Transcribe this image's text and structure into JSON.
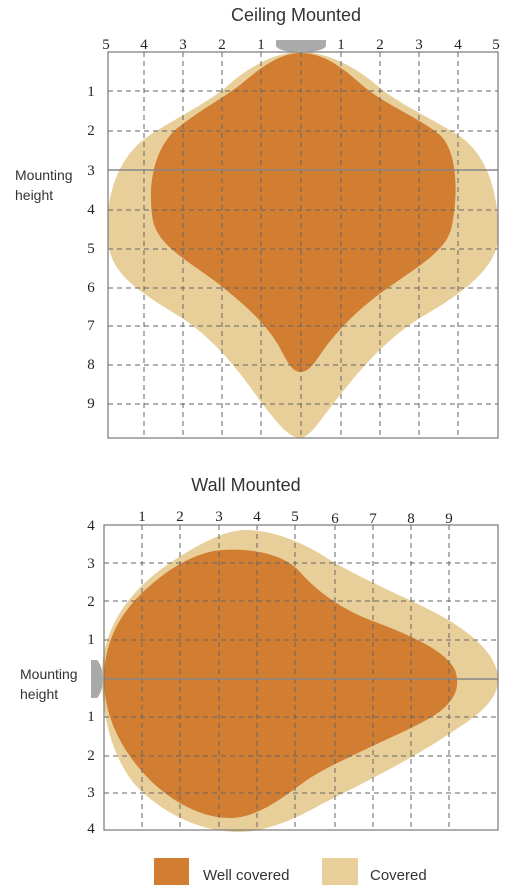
{
  "ceiling": {
    "title": "Ceiling Mounted",
    "top_ticks": [
      "5",
      "4",
      "3",
      "2",
      "1",
      "1",
      "2",
      "3",
      "4",
      "5"
    ],
    "left_ticks": [
      "1",
      "2",
      "3",
      "4",
      "5",
      "6",
      "7",
      "8",
      "9"
    ],
    "side_label_line1": "Mounting",
    "side_label_line2": "height"
  },
  "wall": {
    "title": "Wall Mounted",
    "top_ticks": [
      "1",
      "2",
      "3",
      "4",
      "5",
      "6",
      "7",
      "8",
      "9"
    ],
    "left_ticks": [
      "4",
      "3",
      "2",
      "1",
      "1",
      "2",
      "3",
      "4"
    ],
    "side_label_line1": "Mounting",
    "side_label_line2": "height"
  },
  "legend": {
    "well_covered": "Well covered",
    "covered": "Covered"
  },
  "colors": {
    "well_covered": "#d17d32",
    "covered": "#e8cf9a",
    "fixture": "#aaaaaa",
    "grid": "#666666"
  }
}
